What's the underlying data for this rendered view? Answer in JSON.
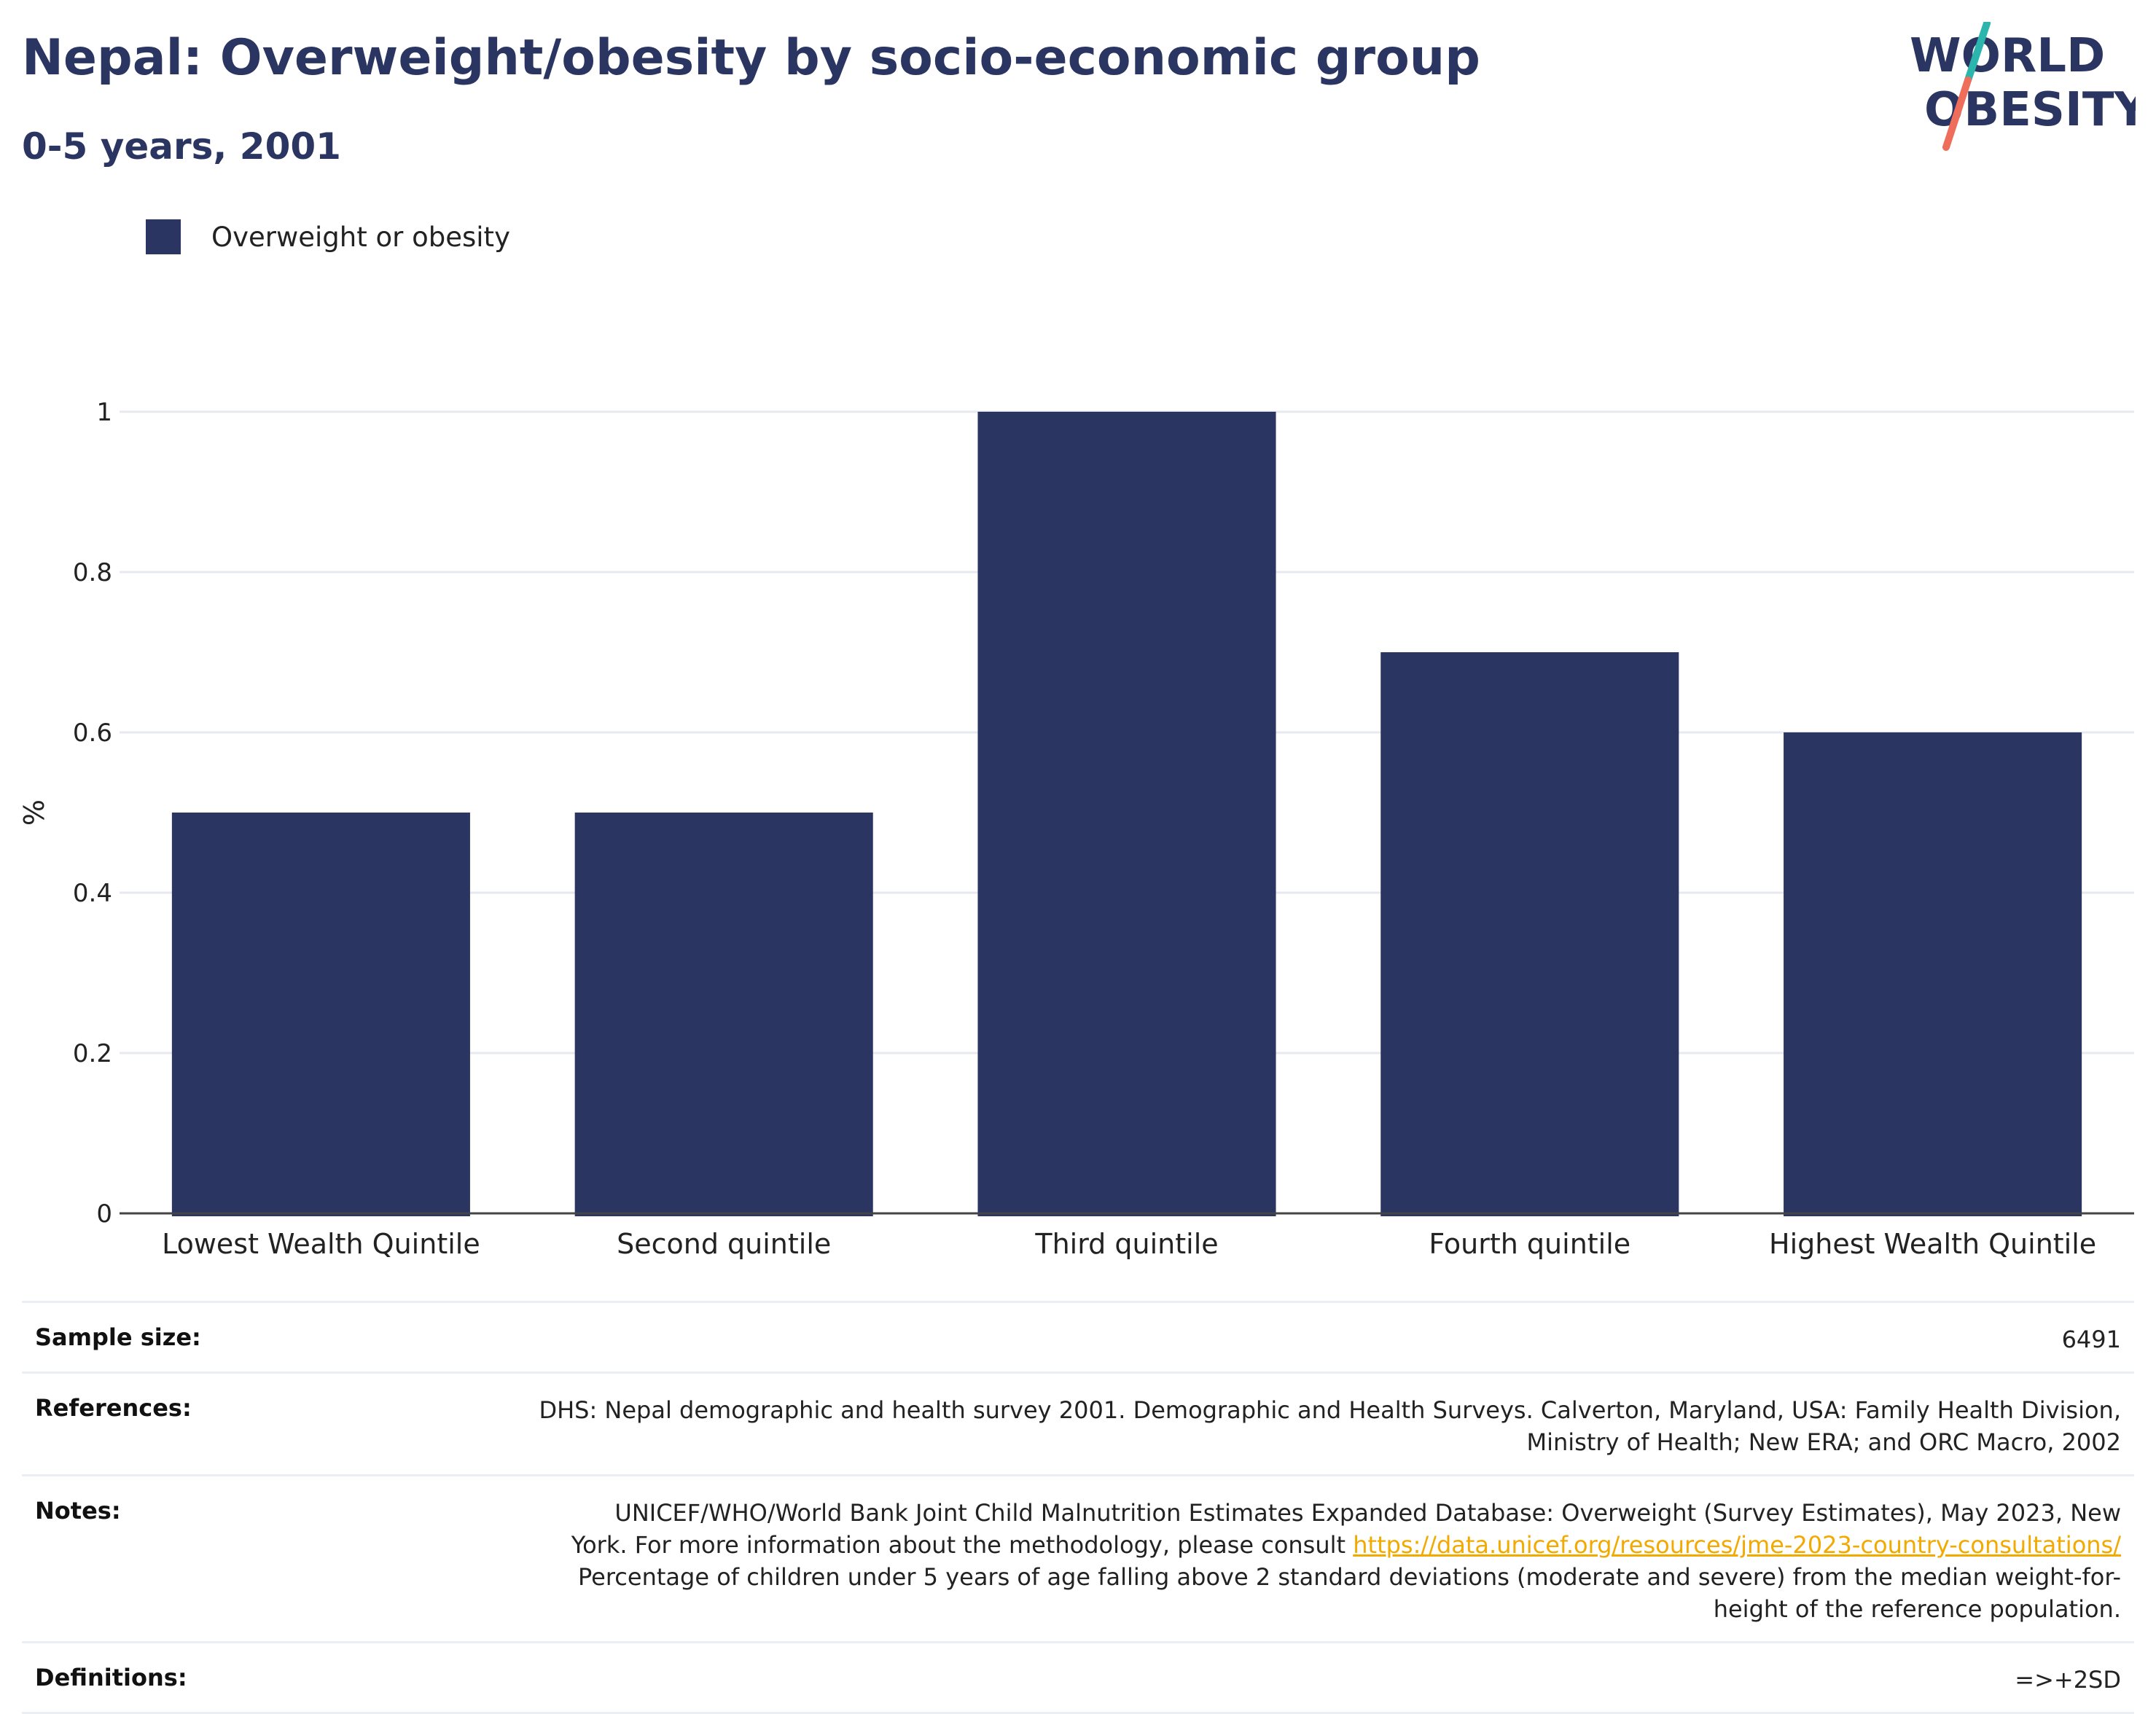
{
  "header": {
    "title": "Nepal: Overweight/obesity by socio-economic group",
    "subtitle": "0-5 years, 2001"
  },
  "logo": {
    "line1": "WORLD",
    "line2": "OBESITY",
    "text_color": "#2a3561",
    "slash_top_color": "#2bb5ad",
    "slash_bottom_color": "#ee6d5b"
  },
  "legend": {
    "label": "Overweight or obesity",
    "color": "#2a3561"
  },
  "chart_data": {
    "type": "bar",
    "categories": [
      "Lowest Wealth Quintile",
      "Second quintile",
      "Third quintile",
      "Fourth quintile",
      "Highest Wealth Quintile"
    ],
    "series": [
      {
        "name": "Overweight or obesity",
        "values": [
          0.5,
          0.5,
          1.0,
          0.7,
          0.6
        ],
        "color": "#2a3561"
      }
    ],
    "ylabel": "%",
    "xlabel": "",
    "ylim": [
      0,
      1.0
    ],
    "yticks": [
      0,
      0.2,
      0.4,
      0.6,
      0.8,
      1
    ],
    "ytick_labels": [
      "0",
      "0.2",
      "0.4",
      "0.6",
      "0.8",
      "1"
    ],
    "grid": true,
    "legend_position": "top-left"
  },
  "info": {
    "sample_size": {
      "label": "Sample size:",
      "value": "6491"
    },
    "references": {
      "label": "References:",
      "line1": "DHS: Nepal demographic and health survey 2001. Demographic and Health Surveys. Calverton, Maryland, USA: Family Health Division,",
      "line2": "Ministry of Health; New ERA; and ORC Macro, 2002"
    },
    "notes": {
      "label": "Notes:",
      "line1": "UNICEF/WHO/World Bank Joint Child Malnutrition Estimates Expanded Database: Overweight (Survey Estimates), May 2023, New",
      "line2_prefix": "York. For more information about the methodology, please consult ",
      "link": "https://data.unicef.org/resources/jme-2023-country-consultations/",
      "line3": "Percentage of children under 5 years of age falling above 2 standard deviations (moderate and severe) from the median weight-for-",
      "line4": "height of the reference population."
    },
    "definitions": {
      "label": "Definitions:",
      "value": "=>+2SD"
    }
  }
}
